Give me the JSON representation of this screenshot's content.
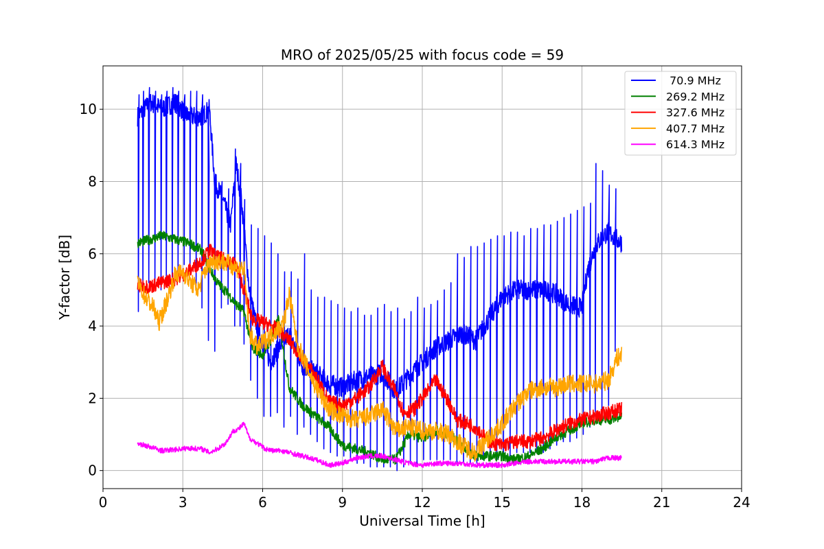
{
  "chart_data": {
    "type": "line",
    "title": "MRO of 2025/05/25 with focus code = 59",
    "xlabel": "Universal Time [h]",
    "ylabel": "Y-factor [dB]",
    "xlim": [
      0,
      24
    ],
    "ylim": [
      -0.5,
      11.2
    ],
    "xticks": [
      0,
      3,
      6,
      9,
      12,
      15,
      18,
      21,
      24
    ],
    "yticks": [
      0,
      2,
      4,
      6,
      8,
      10
    ],
    "grid": true,
    "legend_position": "top-right",
    "series": [
      {
        "name": " 70.9 MHz",
        "color": "#0000ff",
        "x": [
          1.3,
          1.8,
          2.2,
          2.7,
          3.2,
          3.7,
          4.0,
          4.2,
          4.5,
          4.8,
          5.0,
          5.2,
          5.5,
          5.7,
          6.0,
          6.3,
          6.6,
          7.0,
          7.5,
          8.0,
          8.5,
          9.0,
          9.5,
          10.0,
          10.5,
          11.0,
          11.5,
          12.0,
          12.5,
          13.0,
          13.5,
          14.0,
          14.5,
          15.0,
          15.5,
          16.0,
          16.5,
          17.0,
          17.5,
          18.0,
          18.2,
          18.5,
          18.8,
          19.0,
          19.3,
          19.5
        ],
        "y": [
          9.8,
          10.2,
          10.0,
          10.2,
          9.8,
          9.8,
          10.0,
          8.0,
          7.5,
          6.8,
          8.5,
          7.5,
          5.0,
          4.2,
          3.5,
          3.0,
          3.4,
          3.8,
          2.9,
          2.7,
          2.4,
          2.3,
          2.5,
          2.6,
          2.7,
          2.2,
          2.6,
          3.0,
          3.4,
          3.6,
          3.8,
          3.6,
          4.2,
          4.8,
          5.0,
          5.0,
          5.0,
          4.9,
          4.6,
          4.5,
          5.5,
          6.2,
          6.5,
          6.6,
          6.4,
          6.3
        ],
        "spikes": {
          "x": [
            1.33,
            1.5,
            1.72,
            1.95,
            2.18,
            2.38,
            2.6,
            2.82,
            3.05,
            3.27,
            3.5,
            3.72,
            3.96,
            4.2,
            4.45,
            4.7,
            4.95,
            5.15,
            5.3,
            5.55,
            5.8,
            6.05,
            6.3,
            6.55,
            6.8,
            7.05,
            7.3,
            7.55,
            7.8,
            8.05,
            8.3,
            8.55,
            8.8,
            9.05,
            9.3,
            9.55,
            9.8,
            10.05,
            10.3,
            10.55,
            10.8,
            11.05,
            11.3,
            11.55,
            11.8,
            12.05,
            12.3,
            12.55,
            12.8,
            13.05,
            13.3,
            13.55,
            13.8,
            14.05,
            14.3,
            14.55,
            14.8,
            15.05,
            15.3,
            15.55,
            15.8,
            16.05,
            16.3,
            16.55,
            16.8,
            17.05,
            17.3,
            17.55,
            17.8,
            18.05,
            18.3,
            18.5,
            18.75,
            19.0,
            19.25
          ],
          "low": [
            4.4,
            5.0,
            5.2,
            5.1,
            5.0,
            5.3,
            5.3,
            5.5,
            5.7,
            5.5,
            5.0,
            4.5,
            3.6,
            3.3,
            4.5,
            4.6,
            4.0,
            4.0,
            3.5,
            2.5,
            2.0,
            1.5,
            1.5,
            1.6,
            1.2,
            1.5,
            1.0,
            1.2,
            1.0,
            0.8,
            0.6,
            0.5,
            0.4,
            0.4,
            0.3,
            0.2,
            0.2,
            0.1,
            0.1,
            0.1,
            0.1,
            0.0,
            0.1,
            0.2,
            0.2,
            0.3,
            0.3,
            0.3,
            0.3,
            0.3,
            0.2,
            0.2,
            0.2,
            0.2,
            0.3,
            0.3,
            0.3,
            0.4,
            0.4,
            0.5,
            0.5,
            0.5,
            0.5,
            0.5,
            0.6,
            0.7,
            0.8,
            0.8,
            0.9,
            1.0,
            1.2,
            1.5,
            1.6,
            1.8,
            3.3
          ],
          "high": [
            10.4,
            10.5,
            10.6,
            10.5,
            10.4,
            10.5,
            10.6,
            10.5,
            10.4,
            10.5,
            10.5,
            10.4,
            8.4,
            8.2,
            8.0,
            7.8,
            8.9,
            8.5,
            7.5,
            6.8,
            6.7,
            6.5,
            6.3,
            6.0,
            5.5,
            5.5,
            5.3,
            6.0,
            5.0,
            4.8,
            4.8,
            4.7,
            4.6,
            4.5,
            4.4,
            4.5,
            4.3,
            4.3,
            4.5,
            4.6,
            4.4,
            4.5,
            4.2,
            4.4,
            4.8,
            4.5,
            4.6,
            4.7,
            5.0,
            5.2,
            6.0,
            5.9,
            6.2,
            6.2,
            6.3,
            6.4,
            6.5,
            6.5,
            6.6,
            6.6,
            6.5,
            6.7,
            6.7,
            6.8,
            6.8,
            6.9,
            7.0,
            7.1,
            7.2,
            7.3,
            7.4,
            8.5,
            8.3,
            7.9,
            7.8
          ]
        }
      },
      {
        "name": "269.2 MHz",
        "color": "#008000",
        "x": [
          1.3,
          1.8,
          2.2,
          2.7,
          3.2,
          3.7,
          4.0,
          4.3,
          4.7,
          5.0,
          5.3,
          5.6,
          6.0,
          6.3,
          6.6,
          7.0,
          7.5,
          8.0,
          8.5,
          9.0,
          9.5,
          10.0,
          10.5,
          11.0,
          11.5,
          12.0,
          12.5,
          13.0,
          13.5,
          14.0,
          14.5,
          15.0,
          15.5,
          16.0,
          16.5,
          17.0,
          17.5,
          18.0,
          18.5,
          19.0,
          19.5
        ],
        "y": [
          6.3,
          6.4,
          6.5,
          6.4,
          6.3,
          6.1,
          5.6,
          5.2,
          4.9,
          4.6,
          4.4,
          3.4,
          3.2,
          3.6,
          4.2,
          2.3,
          1.8,
          1.5,
          1.2,
          0.7,
          0.6,
          0.5,
          0.3,
          0.3,
          1.0,
          0.9,
          1.1,
          1.0,
          0.7,
          0.4,
          0.4,
          0.4,
          0.3,
          0.4,
          0.6,
          0.9,
          1.1,
          1.3,
          1.4,
          1.4,
          1.5
        ]
      },
      {
        "name": "327.6 MHz",
        "color": "#ff0000",
        "x": [
          1.3,
          1.8,
          2.2,
          2.7,
          3.2,
          3.7,
          4.0,
          4.3,
          4.7,
          5.0,
          5.3,
          5.6,
          6.0,
          6.3,
          6.6,
          7.0,
          7.5,
          8.0,
          8.5,
          9.0,
          9.5,
          10.0,
          10.5,
          10.8,
          11.0,
          11.3,
          11.7,
          12.0,
          12.5,
          13.0,
          13.3,
          13.7,
          14.0,
          14.5,
          15.0,
          15.5,
          16.0,
          16.5,
          17.0,
          17.5,
          18.0,
          18.5,
          19.0,
          19.5
        ],
        "y": [
          5.1,
          5.1,
          5.2,
          5.3,
          5.5,
          5.8,
          6.1,
          5.9,
          5.8,
          5.7,
          5.0,
          4.2,
          4.1,
          4.0,
          3.9,
          3.6,
          3.1,
          2.6,
          1.9,
          1.8,
          2.0,
          2.3,
          2.9,
          2.4,
          2.2,
          1.6,
          1.7,
          2.0,
          2.5,
          1.9,
          1.4,
          1.3,
          1.2,
          0.8,
          0.7,
          0.8,
          0.8,
          0.9,
          1.1,
          1.3,
          1.4,
          1.5,
          1.6,
          1.7
        ]
      },
      {
        "name": "407.7 MHz",
        "color": "#ffa500",
        "x": [
          1.3,
          1.6,
          1.9,
          2.1,
          2.4,
          2.7,
          3.0,
          3.3,
          3.6,
          3.8,
          4.1,
          4.4,
          4.8,
          5.0,
          5.3,
          5.5,
          5.8,
          6.1,
          6.4,
          6.8,
          7.0,
          7.3,
          7.7,
          8.0,
          8.5,
          9.0,
          9.5,
          10.0,
          10.5,
          11.0,
          11.5,
          12.0,
          12.5,
          13.0,
          13.5,
          14.0,
          14.5,
          15.0,
          15.5,
          16.0,
          16.5,
          17.0,
          17.5,
          18.0,
          18.5,
          19.0,
          19.3,
          19.5
        ],
        "y": [
          5.2,
          4.8,
          4.5,
          4.1,
          4.7,
          5.4,
          5.5,
          5.2,
          5.0,
          5.5,
          5.8,
          5.8,
          5.7,
          5.6,
          5.6,
          3.8,
          3.4,
          3.6,
          3.8,
          4.1,
          4.9,
          3.5,
          2.8,
          2.3,
          1.7,
          1.5,
          1.4,
          1.5,
          1.7,
          1.1,
          1.2,
          1.1,
          1.1,
          1.0,
          0.7,
          0.5,
          0.9,
          1.3,
          1.8,
          2.2,
          2.3,
          2.3,
          2.4,
          2.4,
          2.4,
          2.5,
          3.1,
          3.2
        ]
      },
      {
        "name": "614.3 MHz",
        "color": "#ff00ff",
        "x": [
          1.3,
          1.8,
          2.2,
          2.7,
          3.2,
          3.7,
          4.0,
          4.3,
          4.6,
          4.9,
          5.1,
          5.3,
          5.5,
          5.8,
          6.1,
          6.4,
          6.7,
          7.0,
          7.5,
          8.0,
          8.5,
          9.0,
          9.5,
          10.0,
          10.5,
          11.0,
          11.5,
          12.0,
          12.5,
          13.0,
          13.5,
          14.0,
          14.5,
          15.0,
          15.5,
          16.0,
          16.5,
          17.0,
          17.5,
          18.0,
          18.5,
          19.0,
          19.5
        ],
        "y": [
          0.75,
          0.65,
          0.55,
          0.58,
          0.62,
          0.6,
          0.5,
          0.6,
          0.75,
          1.1,
          1.15,
          1.3,
          0.9,
          0.75,
          0.6,
          0.55,
          0.55,
          0.5,
          0.4,
          0.3,
          0.15,
          0.2,
          0.35,
          0.4,
          0.4,
          0.3,
          0.2,
          0.15,
          0.2,
          0.2,
          0.2,
          0.15,
          0.15,
          0.15,
          0.2,
          0.25,
          0.25,
          0.25,
          0.25,
          0.25,
          0.25,
          0.35,
          0.35
        ]
      }
    ]
  }
}
